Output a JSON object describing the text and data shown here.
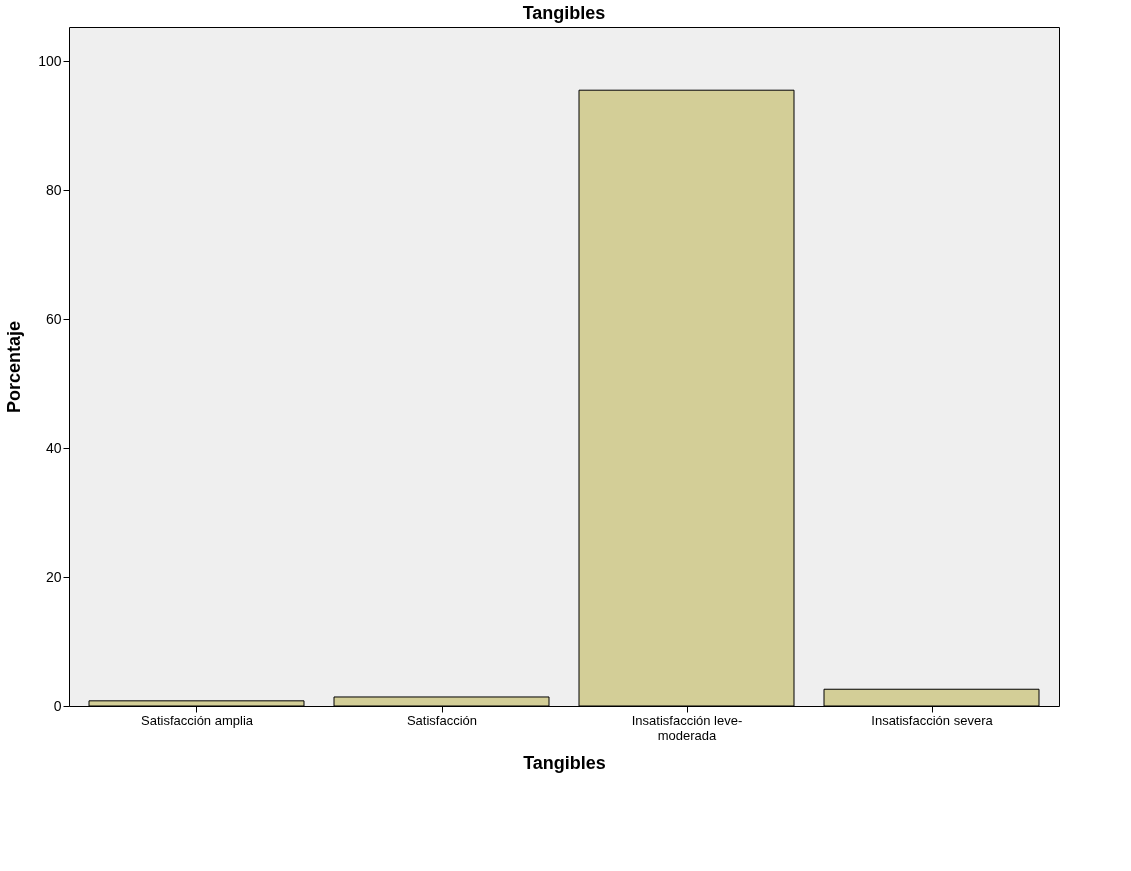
{
  "chart_data": {
    "type": "bar",
    "title": "Tangibles",
    "xlabel": "Tangibles",
    "ylabel": "Porcentaje",
    "categories": [
      "Satisfacción amplia",
      "Satisfacción",
      "Insatisfacción leve-moderada",
      "Insatisfacción severa"
    ],
    "values": [
      0.8,
      1.4,
      95.5,
      2.6
    ],
    "color": "#d3ce97",
    "ylim": [
      0,
      105.3
    ],
    "yticks": [
      0,
      20,
      40,
      60,
      80,
      100
    ],
    "grid": false
  }
}
